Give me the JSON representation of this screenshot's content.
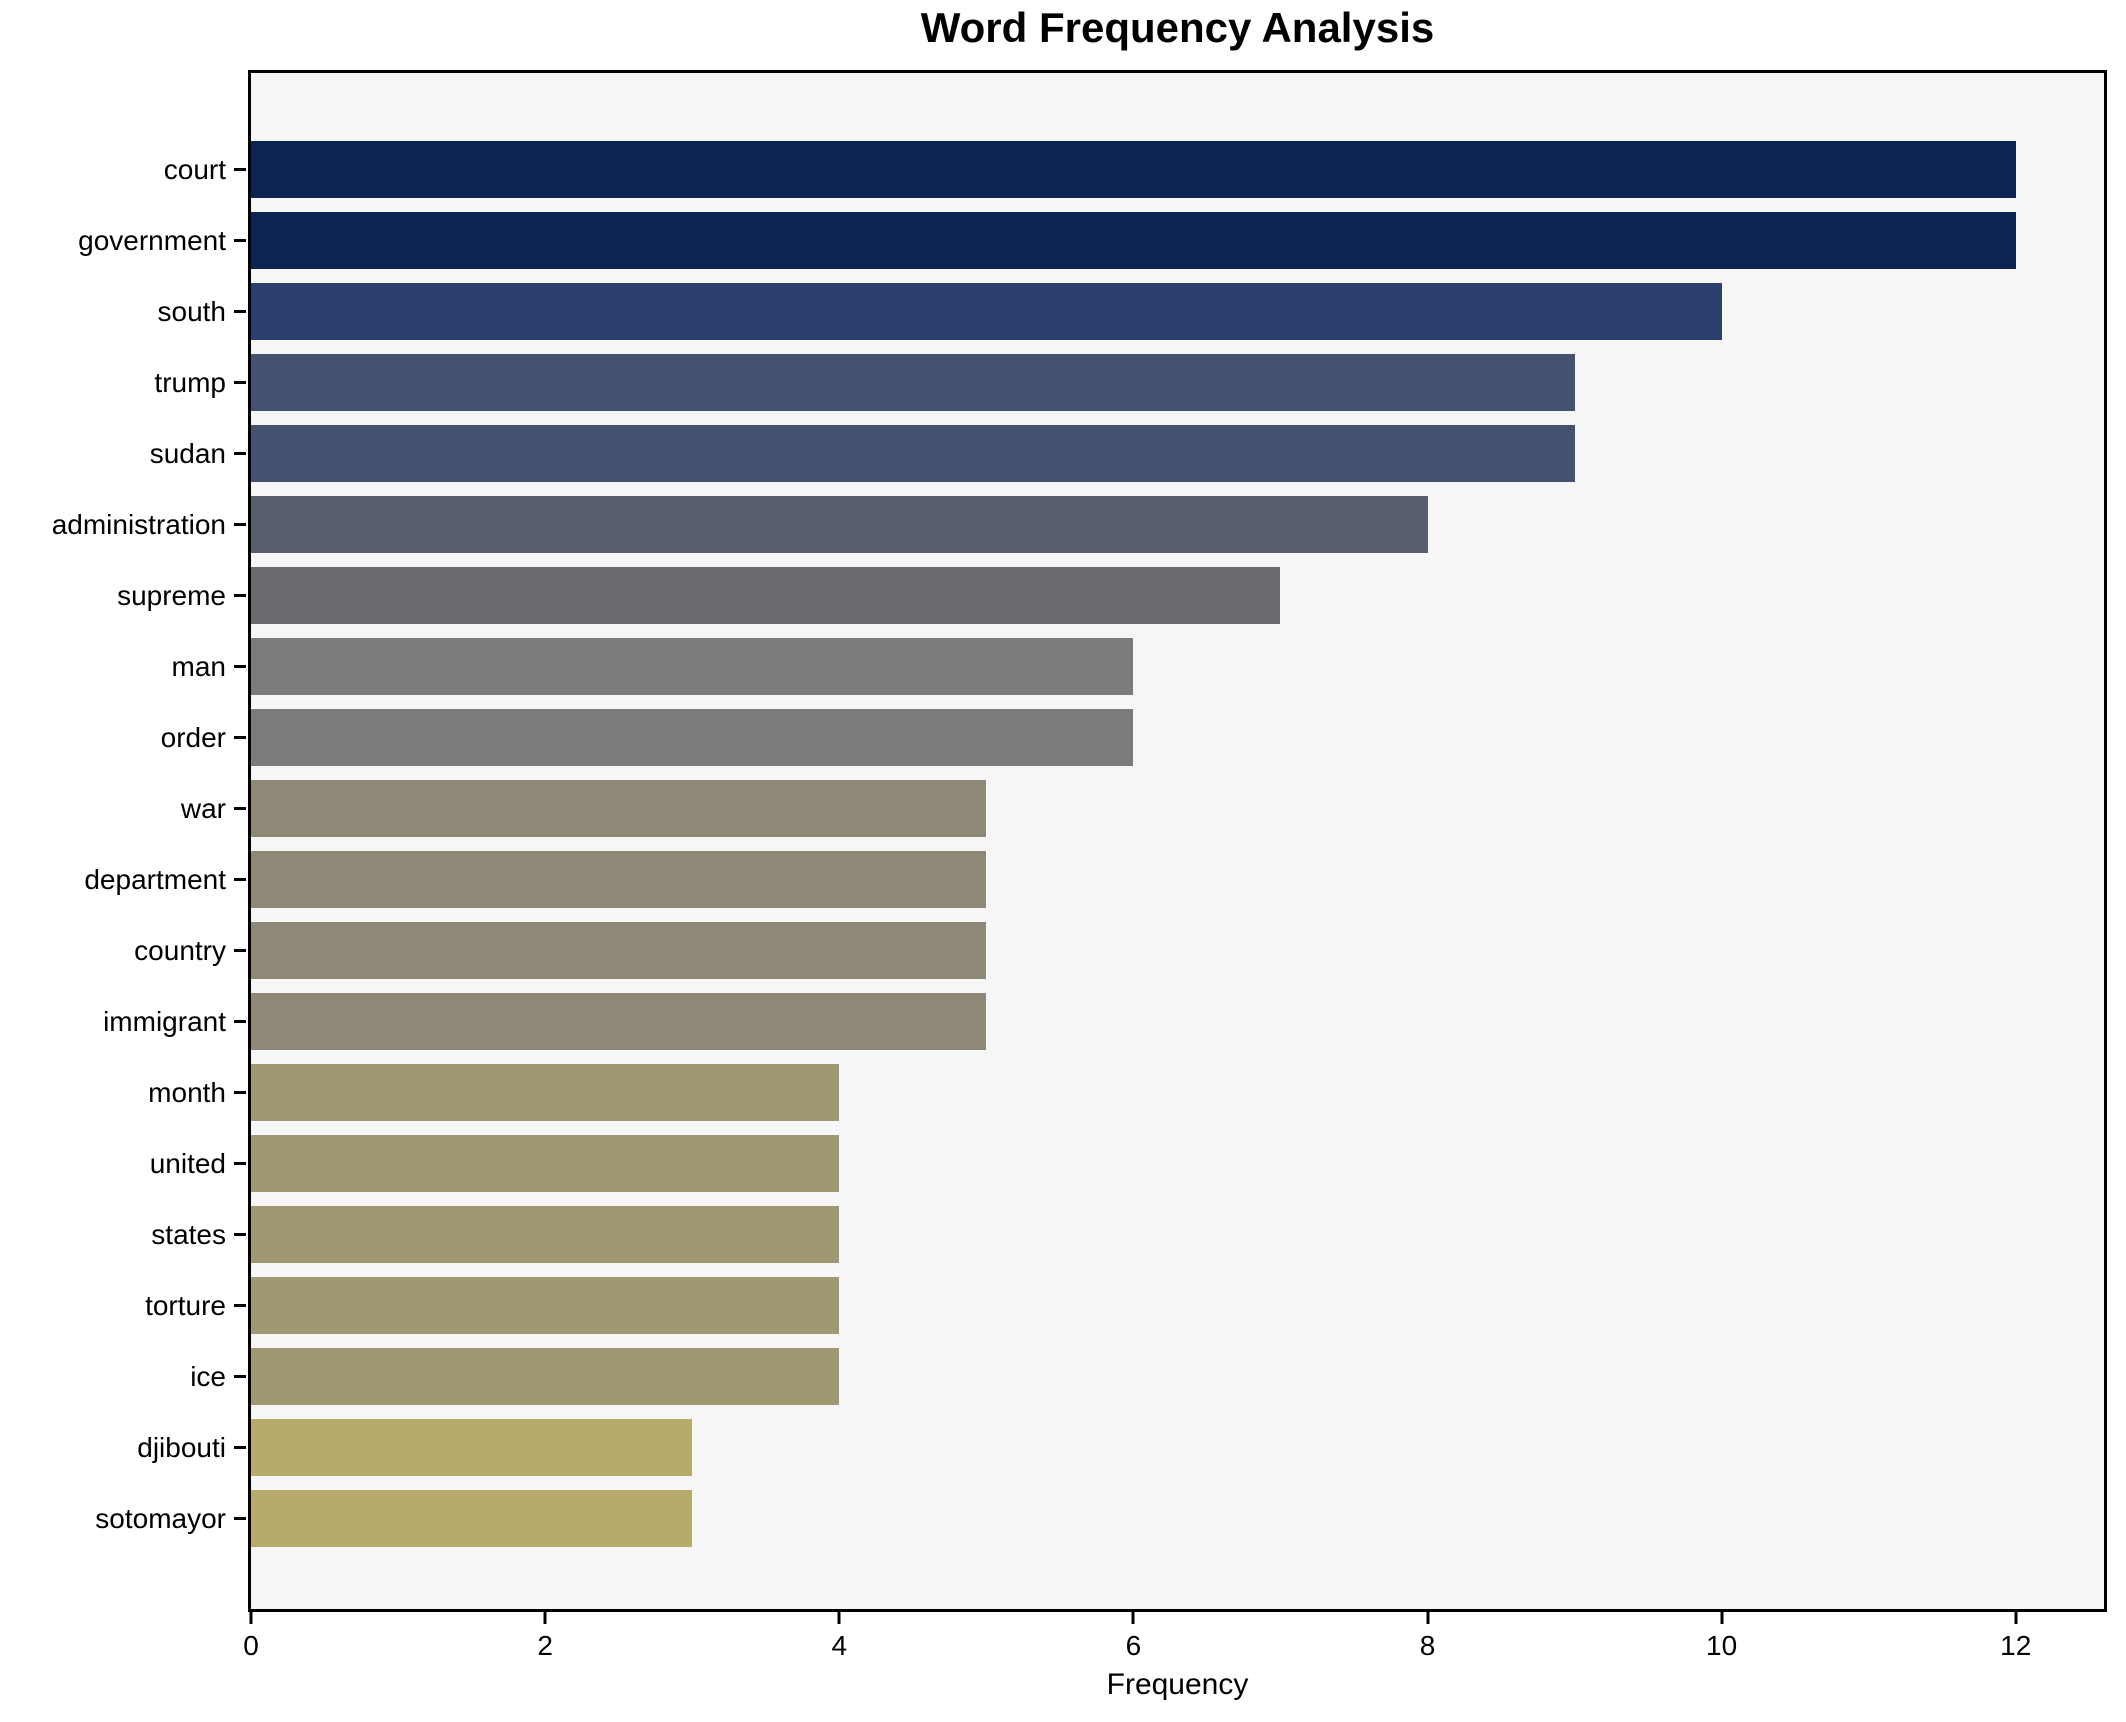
{
  "title": "Word Frequency Analysis",
  "xlabel": "Frequency",
  "chart_data": {
    "type": "bar",
    "orientation": "horizontal",
    "title": "Word Frequency Analysis",
    "xlabel": "Frequency",
    "ylabel": "",
    "categories": [
      "court",
      "government",
      "south",
      "trump",
      "sudan",
      "administration",
      "supreme",
      "man",
      "order",
      "war",
      "department",
      "country",
      "immigrant",
      "month",
      "united",
      "states",
      "torture",
      "ice",
      "djibouti",
      "sotomayor"
    ],
    "values": [
      12,
      12,
      10,
      9,
      9,
      8,
      7,
      6,
      6,
      5,
      5,
      5,
      5,
      4,
      4,
      4,
      4,
      4,
      3,
      3
    ],
    "bar_colors": [
      "#0b2550",
      "#0b2550",
      "#2b406c",
      "#455170",
      "#455170",
      "#575d6c",
      "#696b70",
      "#7b7c79",
      "#7b7c79",
      "#8e8876",
      "#8e8876",
      "#8e8876",
      "#8e8876",
      "#a09873",
      "#a09873",
      "#a09873",
      "#a09873",
      "#a09873",
      "#b7ab6c",
      "#b7ab6c"
    ],
    "x_ticks": [
      0,
      2,
      4,
      6,
      8,
      10,
      12
    ],
    "xlim": [
      0,
      12.6
    ],
    "grid": false,
    "legend": null,
    "colormap": "cividis",
    "plot_background": "#f6f6f7",
    "figure_background": "#ffffff",
    "spine_color": "#000000"
  }
}
